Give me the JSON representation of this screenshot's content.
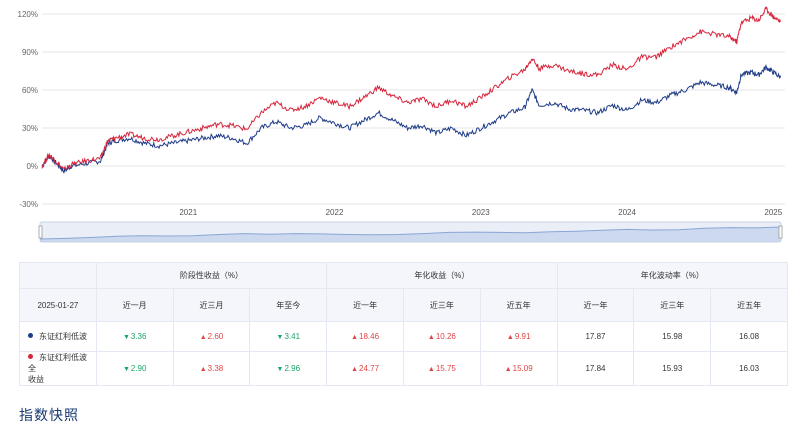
{
  "chart_data": {
    "type": "line",
    "y_axis": {
      "ticks": [
        "120%",
        "90%",
        "60%",
        "30%",
        "0%",
        "-30%"
      ],
      "tick_values": [
        120,
        90,
        60,
        30,
        0,
        -30
      ],
      "ylim": [
        -30,
        120
      ]
    },
    "x_axis": {
      "ticks": [
        "2021",
        "2022",
        "2023",
        "2024",
        "2025"
      ],
      "tick_values": [
        2021.0,
        2022.0,
        2023.0,
        2024.0,
        2025.0
      ],
      "xlim": [
        2020.0,
        2025.08
      ]
    },
    "grid": true,
    "colors": {
      "red": "#d7263d",
      "blue": "#1f3c88",
      "navigator": "#b9cbe8"
    },
    "series": [
      {
        "name": "东证红利低波",
        "color": "#1f3c88",
        "x": [
          2020.0,
          2020.05,
          2020.1,
          2020.15,
          2020.2,
          2020.3,
          2020.4,
          2020.45,
          2020.5,
          2020.6,
          2020.7,
          2020.8,
          2020.9,
          2021.0,
          2021.1,
          2021.2,
          2021.3,
          2021.4,
          2021.5,
          2021.6,
          2021.7,
          2021.8,
          2021.9,
          2022.0,
          2022.1,
          2022.2,
          2022.3,
          2022.4,
          2022.5,
          2022.6,
          2022.7,
          2022.8,
          2022.9,
          2023.0,
          2023.1,
          2023.2,
          2023.3,
          2023.35,
          2023.4,
          2023.5,
          2023.6,
          2023.7,
          2023.8,
          2023.9,
          2024.0,
          2024.1,
          2024.2,
          2024.3,
          2024.4,
          2024.5,
          2024.6,
          2024.7,
          2024.75,
          2024.78,
          2024.85,
          2024.9,
          2024.95,
          2025.0,
          2025.05
        ],
        "values": [
          0,
          8,
          2,
          -4,
          0,
          2,
          4,
          18,
          20,
          22,
          18,
          16,
          18,
          20,
          22,
          24,
          22,
          18,
          30,
          35,
          30,
          32,
          38,
          34,
          30,
          36,
          42,
          36,
          30,
          32,
          26,
          30,
          24,
          30,
          36,
          42,
          46,
          60,
          48,
          50,
          45,
          44,
          42,
          48,
          44,
          52,
          50,
          56,
          60,
          66,
          64,
          62,
          58,
          72,
          74,
          72,
          78,
          74,
          70
        ]
      },
      {
        "name": "东证红利低波全收益",
        "color": "#d7263d",
        "x": [
          2020.0,
          2020.05,
          2020.1,
          2020.15,
          2020.2,
          2020.3,
          2020.4,
          2020.45,
          2020.5,
          2020.6,
          2020.7,
          2020.8,
          2020.9,
          2021.0,
          2021.1,
          2021.2,
          2021.3,
          2021.4,
          2021.5,
          2021.6,
          2021.7,
          2021.8,
          2021.9,
          2022.0,
          2022.1,
          2022.2,
          2022.3,
          2022.4,
          2022.5,
          2022.6,
          2022.7,
          2022.8,
          2022.9,
          2023.0,
          2023.1,
          2023.2,
          2023.3,
          2023.35,
          2023.4,
          2023.5,
          2023.6,
          2023.7,
          2023.8,
          2023.9,
          2024.0,
          2024.1,
          2024.2,
          2024.3,
          2024.4,
          2024.5,
          2024.6,
          2024.7,
          2024.75,
          2024.78,
          2024.85,
          2024.9,
          2024.95,
          2025.0,
          2025.05
        ],
        "values": [
          0,
          9,
          3,
          -3,
          1,
          4,
          6,
          20,
          22,
          25,
          22,
          21,
          24,
          27,
          30,
          33,
          32,
          29,
          42,
          50,
          44,
          47,
          54,
          50,
          47,
          54,
          62,
          55,
          50,
          53,
          47,
          52,
          47,
          54,
          62,
          70,
          76,
          85,
          77,
          80,
          75,
          73,
          72,
          80,
          76,
          86,
          86,
          94,
          100,
          106,
          104,
          102,
          98,
          113,
          117,
          115,
          124,
          118,
          114
        ]
      }
    ],
    "navigator": {
      "values": [
        0,
        4,
        10,
        18,
        22,
        20,
        22,
        30,
        36,
        32,
        36,
        34,
        30,
        28,
        30,
        36,
        44,
        46,
        44,
        42,
        48,
        52,
        58,
        64,
        60,
        62,
        72,
        76,
        74,
        80
      ]
    }
  },
  "table": {
    "group_headers": [
      "阶段性收益（%）",
      "年化收益（%）",
      "年化波动率（%）"
    ],
    "date": "2025-01-27",
    "columns": [
      "近一月",
      "近三月",
      "年至今",
      "近一年",
      "近三年",
      "近五年",
      "近一年",
      "近三年",
      "近五年"
    ],
    "rows": [
      {
        "name": "东证红利低波",
        "dot_color": "#1f3c88",
        "cells": [
          {
            "arrow": "▼",
            "value": "3.36",
            "dir": "down"
          },
          {
            "arrow": "▲",
            "value": "2.60",
            "dir": "up"
          },
          {
            "arrow": "▼",
            "value": "3.41",
            "dir": "down"
          },
          {
            "arrow": "▲",
            "value": "18.46",
            "dir": "up"
          },
          {
            "arrow": "▲",
            "value": "10.26",
            "dir": "up"
          },
          {
            "arrow": "▲",
            "value": "9.91",
            "dir": "up"
          },
          {
            "arrow": "",
            "value": "17.87",
            "dir": "flat"
          },
          {
            "arrow": "",
            "value": "15.98",
            "dir": "flat"
          },
          {
            "arrow": "",
            "value": "16.08",
            "dir": "flat"
          }
        ]
      },
      {
        "name_line1": "东证红利低波全",
        "name_line2": "收益",
        "dot_color": "#d7263d",
        "cells": [
          {
            "arrow": "▼",
            "value": "2.90",
            "dir": "down"
          },
          {
            "arrow": "▲",
            "value": "3.38",
            "dir": "up"
          },
          {
            "arrow": "▼",
            "value": "2.96",
            "dir": "down"
          },
          {
            "arrow": "▲",
            "value": "24.77",
            "dir": "up"
          },
          {
            "arrow": "▲",
            "value": "15.75",
            "dir": "up"
          },
          {
            "arrow": "▲",
            "value": "15.09",
            "dir": "up"
          },
          {
            "arrow": "",
            "value": "17.84",
            "dir": "flat"
          },
          {
            "arrow": "",
            "value": "15.93",
            "dir": "flat"
          },
          {
            "arrow": "",
            "value": "16.03",
            "dir": "flat"
          }
        ]
      }
    ]
  },
  "section_title": "指数快照"
}
